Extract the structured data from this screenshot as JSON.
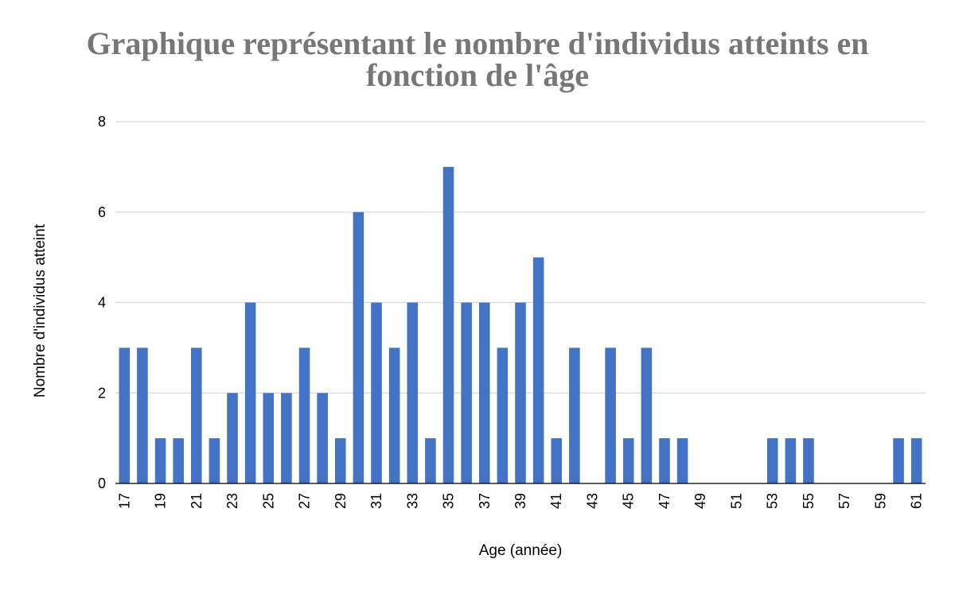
{
  "chart_data": {
    "type": "bar",
    "title_lines": [
      "Graphique représentant le nombre d'individus atteints en",
      "fonction de l'âge"
    ],
    "xlabel": "Age (année)",
    "ylabel": "Nombre d'individus atteint",
    "ylim": [
      0,
      8
    ],
    "yticks": [
      "0",
      "2",
      "4",
      "6",
      "8"
    ],
    "grid": true,
    "legend": "none",
    "bar_color": "#4472C4",
    "categories": [
      "17",
      "18",
      "19",
      "20",
      "21",
      "22",
      "23",
      "24",
      "25",
      "26",
      "27",
      "28",
      "29",
      "30",
      "31",
      "32",
      "33",
      "34",
      "35",
      "36",
      "37",
      "38",
      "39",
      "40",
      "41",
      "42",
      "43",
      "44",
      "45",
      "46",
      "47",
      "48",
      "49",
      "50",
      "51",
      "52",
      "53",
      "54",
      "55",
      "56",
      "57",
      "58",
      "59",
      "60",
      "61"
    ],
    "xtick_labels": [
      "17",
      "19",
      "21",
      "23",
      "25",
      "27",
      "29",
      "31",
      "33",
      "35",
      "37",
      "39",
      "41",
      "43",
      "45",
      "47",
      "49",
      "51",
      "53",
      "55",
      "57",
      "59",
      "61"
    ],
    "values": [
      3,
      3,
      1,
      1,
      3,
      1,
      2,
      4,
      2,
      2,
      3,
      2,
      1,
      6,
      4,
      3,
      4,
      1,
      7,
      4,
      4,
      3,
      4,
      5,
      1,
      3,
      0,
      3,
      1,
      3,
      1,
      1,
      0,
      0,
      0,
      0,
      1,
      1,
      1,
      0,
      0,
      0,
      0,
      1,
      1
    ]
  }
}
